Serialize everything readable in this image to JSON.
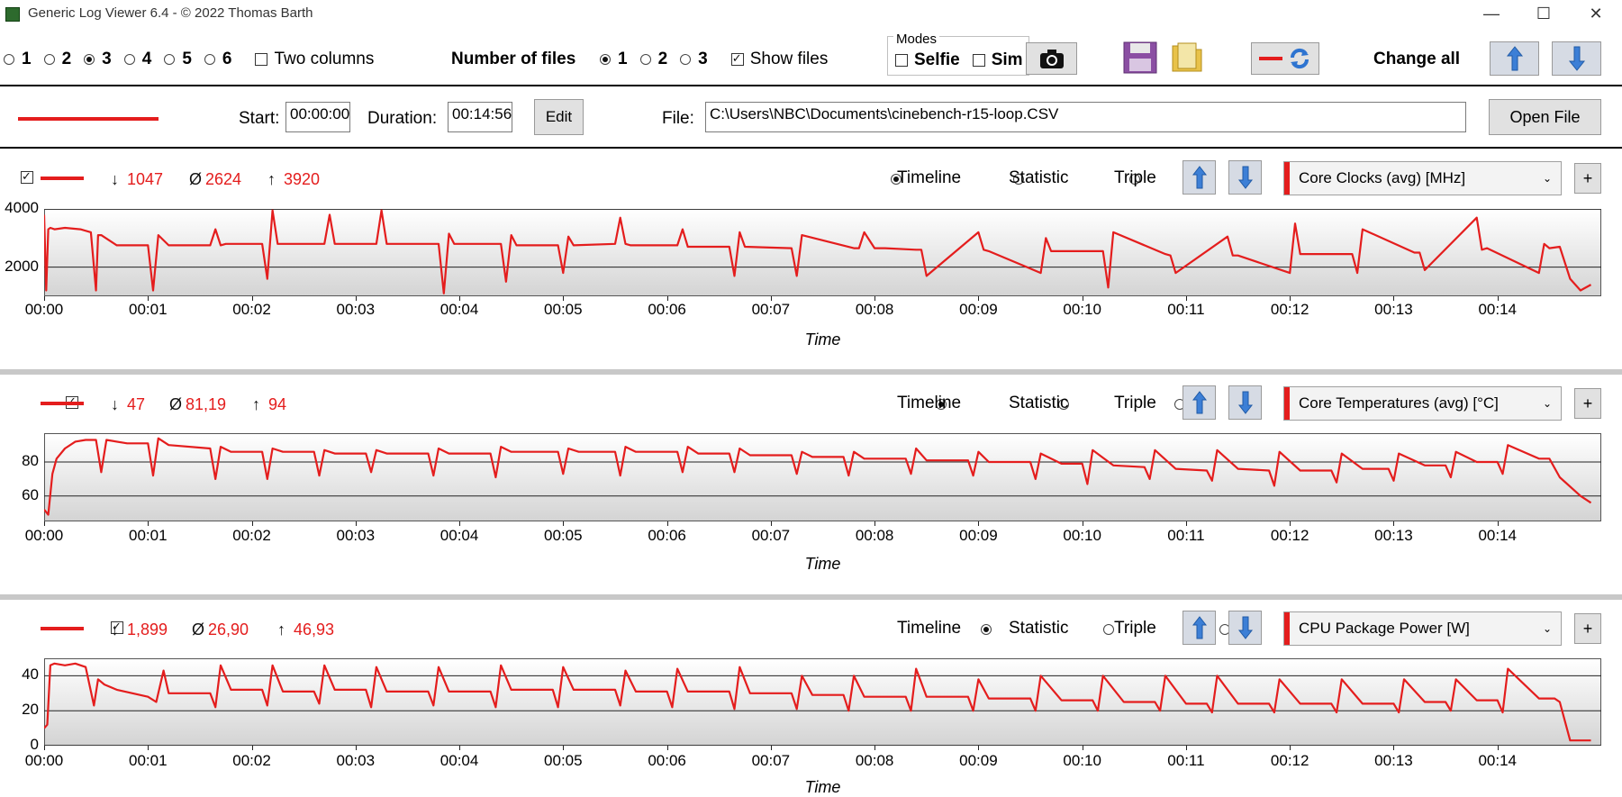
{
  "window": {
    "title": "Generic Log Viewer 6.4 - © 2022 Thomas Barth",
    "minimize": "—",
    "maximize": "☐",
    "close": "✕"
  },
  "toolbar": {
    "count_options": [
      "1",
      "2",
      "3",
      "4",
      "5",
      "6"
    ],
    "count_selected": "3",
    "two_columns_label": "Two columns",
    "number_of_files_label": "Number of files",
    "file_options": [
      "1",
      "2",
      "3"
    ],
    "file_selected": "1",
    "show_files_label": "Show files",
    "modes_label": "Modes",
    "selfie_label": "Selfie",
    "sim_label": "Sim",
    "change_all_label": "Change all"
  },
  "file_bar": {
    "start_label": "Start:",
    "start_value": "00:00:00",
    "duration_label": "Duration:",
    "duration_value": "00:14:56",
    "edit_label": "Edit",
    "file_label": "File:",
    "file_path": "C:\\Users\\NBC\\Documents\\cinebench-r15-loop.CSV",
    "open_file_label": "Open File"
  },
  "colors": {
    "series": "#e41d1d",
    "accent_button": "#d6dbe4",
    "arrow": "#3c7fd6"
  },
  "panel_common": {
    "timeline_label": "Timeline",
    "statistic_label": "Statistic",
    "triple_label": "Triple",
    "plus_label": "+",
    "min_sym": "↓",
    "avg_sym": "Ø",
    "max_sym": "↑"
  },
  "panels": [
    {
      "min": "1047",
      "avg": "2624",
      "max": "3920",
      "sensor": "Core Clocks (avg) [MHz]",
      "chart_data": {
        "type": "line",
        "xlabel": "Time",
        "x_ticks": [
          "00:00",
          "00:01",
          "00:02",
          "00:03",
          "00:04",
          "00:05",
          "00:06",
          "00:07",
          "00:08",
          "00:09",
          "00:10",
          "00:11",
          "00:12",
          "00:13",
          "00:14"
        ],
        "y_ticks": [
          "2000",
          "4000"
        ],
        "xlim": [
          0,
          15
        ],
        "ylim": [
          1000,
          4000
        ],
        "series": [
          {
            "x": [
              0,
              0.02,
              0.04,
              0.06,
              0.1,
              0.2,
              0.35,
              0.45,
              0.5,
              0.52,
              0.55,
              0.7,
              1.0,
              1.05,
              1.1,
              1.2,
              1.6,
              1.65,
              1.7,
              1.75,
              2.1,
              2.15,
              2.2,
              2.25,
              2.3,
              2.7,
              2.75,
              2.8,
              2.85,
              3.2,
              3.25,
              3.3,
              3.35,
              3.4,
              3.8,
              3.85,
              3.9,
              3.95,
              4.0,
              4.4,
              4.45,
              4.5,
              4.55,
              4.95,
              5.0,
              5.05,
              5.1,
              5.5,
              5.55,
              5.6,
              5.65,
              6.1,
              6.15,
              6.2,
              6.25,
              6.6,
              6.65,
              6.7,
              6.75,
              7.2,
              7.25,
              7.3,
              7.8,
              7.85,
              7.9,
              8.0,
              8.1,
              8.4,
              8.45,
              8.5,
              9.0,
              9.05,
              9.1,
              9.6,
              9.65,
              9.7,
              10.2,
              10.25,
              10.3,
              10.8,
              10.85,
              10.9,
              11.4,
              11.45,
              11.5,
              12.0,
              12.05,
              12.1,
              12.6,
              12.65,
              12.7,
              13.2,
              13.25,
              13.3,
              13.8,
              13.85,
              13.9,
              14.4,
              14.45,
              14.5,
              14.6,
              14.7,
              14.8,
              14.9
            ],
            "y": [
              3800,
              1200,
              3300,
              3350,
              3300,
              3350,
              3300,
              3200,
              1200,
              3100,
              3100,
              2750,
              2750,
              1200,
              3100,
              2750,
              2750,
              3300,
              2750,
              2800,
              2800,
              1600,
              3950,
              2800,
              2800,
              2800,
              3800,
              2800,
              2800,
              2800,
              3950,
              2800,
              2800,
              2800,
              2800,
              1100,
              3150,
              2800,
              2800,
              2800,
              1500,
              3100,
              2750,
              2750,
              1800,
              3050,
              2750,
              2800,
              3700,
              2800,
              2750,
              2750,
              3300,
              2700,
              2700,
              2700,
              1700,
              3200,
              2700,
              2650,
              1700,
              3100,
              2650,
              2650,
              3200,
              2650,
              2650,
              2600,
              2600,
              1700,
              3200,
              2600,
              2550,
              1800,
              3000,
              2550,
              2550,
              1300,
              3200,
              2450,
              2400,
              1800,
              3050,
              2400,
              2400,
              1800,
              3500,
              2450,
              2450,
              1800,
              3300,
              2500,
              2500,
              1900,
              3700,
              2600,
              2650,
              1800,
              2800,
              2650,
              2700,
              1600,
              1200,
              1400
            ]
          }
        ]
      }
    },
    {
      "min": "47",
      "avg": "81,19",
      "max": "94",
      "sensor": "Core Temperatures (avg) [°C]",
      "chart_data": {
        "type": "line",
        "xlabel": "Time",
        "x_ticks": [
          "00:00",
          "00:01",
          "00:02",
          "00:03",
          "00:04",
          "00:05",
          "00:06",
          "00:07",
          "00:08",
          "00:09",
          "00:10",
          "00:11",
          "00:12",
          "00:13",
          "00:14"
        ],
        "y_ticks": [
          "60",
          "80"
        ],
        "xlim": [
          0,
          15
        ],
        "ylim": [
          45,
          97
        ],
        "series": [
          {
            "x": [
              0,
              0.04,
              0.08,
              0.12,
              0.2,
              0.3,
              0.4,
              0.5,
              0.55,
              0.6,
              0.8,
              1.0,
              1.05,
              1.1,
              1.2,
              1.6,
              1.65,
              1.7,
              1.8,
              2.1,
              2.15,
              2.2,
              2.3,
              2.6,
              2.65,
              2.7,
              2.8,
              3.1,
              3.15,
              3.2,
              3.3,
              3.7,
              3.75,
              3.8,
              3.9,
              4.3,
              4.35,
              4.4,
              4.5,
              4.95,
              5.0,
              5.05,
              5.15,
              5.5,
              5.55,
              5.6,
              5.7,
              6.1,
              6.15,
              6.2,
              6.3,
              6.6,
              6.65,
              6.7,
              6.8,
              7.2,
              7.25,
              7.3,
              7.4,
              7.7,
              7.75,
              7.8,
              7.9,
              8.3,
              8.35,
              8.4,
              8.5,
              8.9,
              8.95,
              9.0,
              9.1,
              9.5,
              9.55,
              9.6,
              9.8,
              10.0,
              10.05,
              10.1,
              10.3,
              10.6,
              10.65,
              10.7,
              10.9,
              11.2,
              11.25,
              11.3,
              11.5,
              11.8,
              11.85,
              11.9,
              12.1,
              12.4,
              12.45,
              12.5,
              12.7,
              12.95,
              13.0,
              13.05,
              13.3,
              13.5,
              13.55,
              13.6,
              13.8,
              14.0,
              14.05,
              14.1,
              14.4,
              14.5,
              14.6,
              14.8,
              14.9
            ],
            "y": [
              52,
              49,
              73,
              82,
              88,
              92,
              93,
              93,
              74,
              93,
              91,
              91,
              72,
              94,
              90,
              88,
              70,
              89,
              86,
              86,
              70,
              88,
              86,
              86,
              72,
              87,
              85,
              85,
              74,
              87,
              85,
              85,
              72,
              88,
              85,
              85,
              71,
              89,
              86,
              86,
              73,
              88,
              86,
              86,
              72,
              89,
              86,
              86,
              74,
              89,
              85,
              85,
              74,
              88,
              84,
              84,
              73,
              86,
              83,
              83,
              72,
              86,
              82,
              82,
              73,
              88,
              81,
              81,
              72,
              86,
              80,
              80,
              70,
              85,
              79,
              79,
              67,
              87,
              78,
              77,
              70,
              87,
              76,
              75,
              69,
              87,
              76,
              75,
              66,
              86,
              75,
              75,
              68,
              85,
              76,
              76,
              69,
              85,
              78,
              78,
              71,
              86,
              80,
              80,
              73,
              90,
              82,
              82,
              71,
              60,
              56
            ]
          }
        ]
      }
    },
    {
      "min": "1,899",
      "avg": "26,90",
      "max": "46,93",
      "sensor": "CPU Package Power [W]",
      "chart_data": {
        "type": "line",
        "xlabel": "Time",
        "x_ticks": [
          "00:00",
          "00:01",
          "00:02",
          "00:03",
          "00:04",
          "00:05",
          "00:06",
          "00:07",
          "00:08",
          "00:09",
          "00:10",
          "00:11",
          "00:12",
          "00:13",
          "00:14"
        ],
        "y_ticks": [
          "0",
          "20",
          "40"
        ],
        "xlim": [
          0,
          15
        ],
        "ylim": [
          0,
          50
        ],
        "series": [
          {
            "x": [
              0,
              0.03,
              0.06,
              0.1,
              0.2,
              0.3,
              0.4,
              0.48,
              0.52,
              0.58,
              0.7,
              1.0,
              1.08,
              1.15,
              1.2,
              1.6,
              1.65,
              1.7,
              1.8,
              2.1,
              2.15,
              2.2,
              2.3,
              2.6,
              2.65,
              2.7,
              2.8,
              3.1,
              3.15,
              3.2,
              3.3,
              3.7,
              3.75,
              3.8,
              3.9,
              4.3,
              4.35,
              4.4,
              4.5,
              4.9,
              4.95,
              5.0,
              5.1,
              5.5,
              5.55,
              5.6,
              5.7,
              6.0,
              6.05,
              6.1,
              6.2,
              6.6,
              6.65,
              6.7,
              6.8,
              7.2,
              7.25,
              7.3,
              7.4,
              7.7,
              7.75,
              7.8,
              7.9,
              8.3,
              8.35,
              8.4,
              8.5,
              8.9,
              8.95,
              9.0,
              9.1,
              9.5,
              9.55,
              9.6,
              9.8,
              10.1,
              10.15,
              10.2,
              10.4,
              10.7,
              10.75,
              10.8,
              11.0,
              11.2,
              11.25,
              11.3,
              11.5,
              11.8,
              11.85,
              11.9,
              12.1,
              12.4,
              12.45,
              12.5,
              12.7,
              13.0,
              13.05,
              13.1,
              13.3,
              13.5,
              13.55,
              13.6,
              13.8,
              14.0,
              14.05,
              14.1,
              14.4,
              14.55,
              14.6,
              14.7,
              14.9
            ],
            "y": [
              10,
              12,
              46,
              47,
              46,
              47,
              45,
              23,
              38,
              35,
              32,
              28,
              25,
              43,
              30,
              30,
              22,
              46,
              32,
              32,
              23,
              46,
              31,
              31,
              24,
              46,
              32,
              32,
              22,
              45,
              31,
              31,
              23,
              45,
              31,
              31,
              22,
              46,
              32,
              32,
              22,
              45,
              32,
              32,
              23,
              43,
              31,
              31,
              22,
              44,
              31,
              31,
              21,
              45,
              30,
              30,
              21,
              40,
              29,
              29,
              20,
              40,
              28,
              28,
              20,
              44,
              28,
              28,
              20,
              38,
              27,
              27,
              20,
              40,
              26,
              26,
              20,
              40,
              25,
              25,
              20,
              40,
              24,
              24,
              19,
              40,
              24,
              24,
              19,
              38,
              24,
              24,
              19,
              38,
              24,
              24,
              19,
              38,
              25,
              25,
              20,
              38,
              26,
              26,
              19,
              44,
              27,
              27,
              25,
              3,
              3
            ]
          }
        ]
      }
    }
  ]
}
